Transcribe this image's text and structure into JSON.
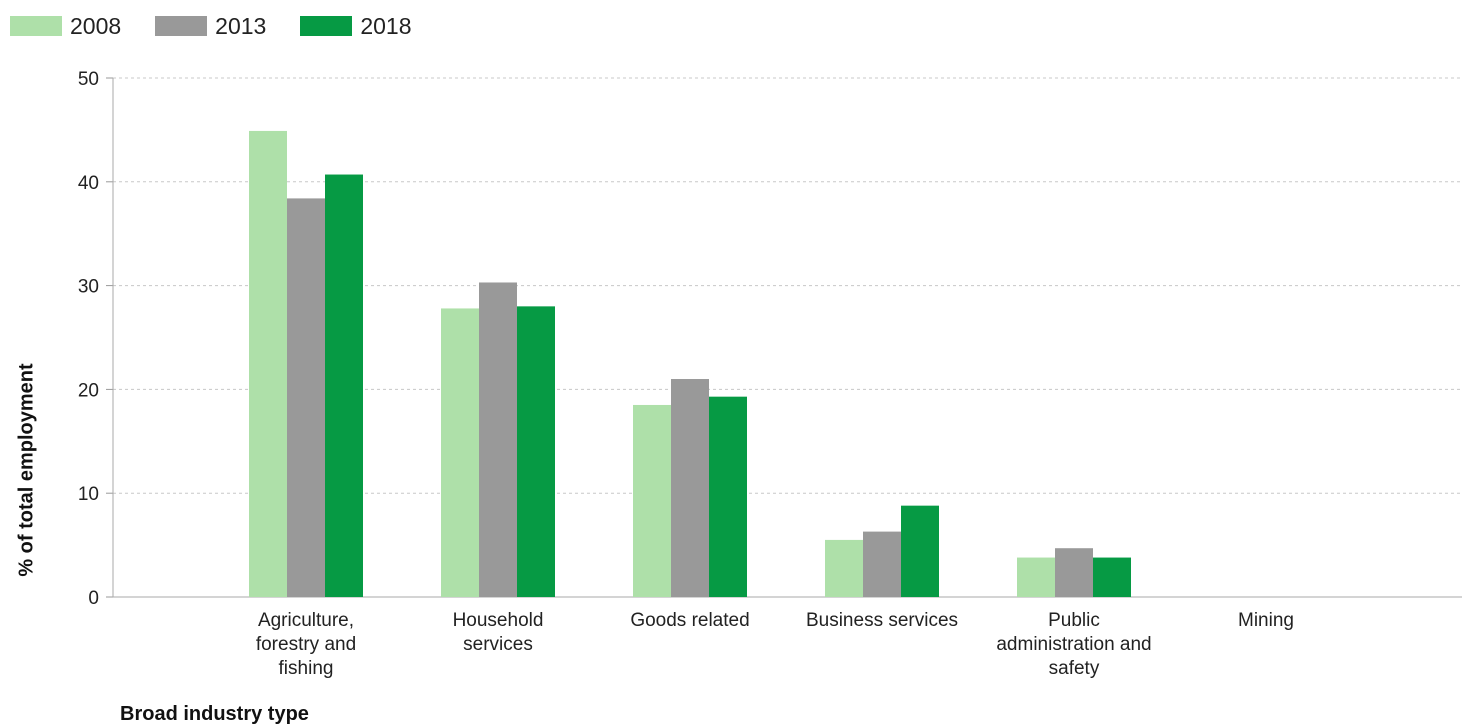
{
  "chart_data": {
    "type": "bar",
    "xlabel": "Broad industry type",
    "ylabel": "% of total employment",
    "ylim": [
      0,
      50
    ],
    "yticks": [
      0,
      10,
      20,
      30,
      40,
      50
    ],
    "grid": true,
    "legend_position": "top-left",
    "categories": [
      [
        "Agriculture,",
        "forestry and",
        "fishing"
      ],
      [
        "Household",
        "services"
      ],
      [
        "Goods related"
      ],
      [
        "Business services"
      ],
      [
        "Public",
        "administration and",
        "safety"
      ],
      [
        "Mining"
      ]
    ],
    "series": [
      {
        "name": "2008",
        "color": "#aee0a9",
        "values": [
          44.9,
          27.8,
          18.5,
          5.5,
          3.8,
          null
        ]
      },
      {
        "name": "2013",
        "color": "#999999",
        "values": [
          38.4,
          30.3,
          21.0,
          6.3,
          4.7,
          null
        ]
      },
      {
        "name": "2018",
        "color": "#069a44",
        "values": [
          40.7,
          28.0,
          19.3,
          8.8,
          3.8,
          null
        ]
      }
    ]
  }
}
